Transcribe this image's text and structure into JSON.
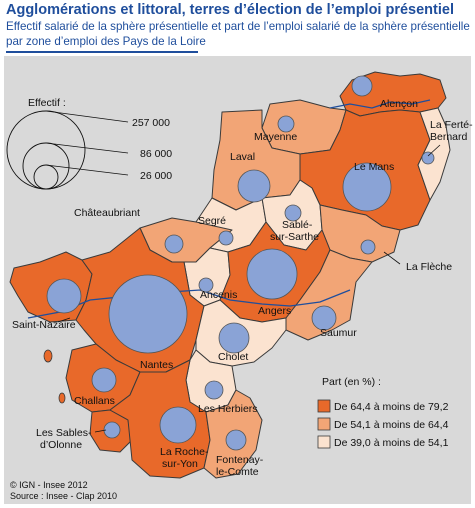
{
  "title": "Agglomérations et littoral, terres d’élection de l’emploi présentiel",
  "subtitle_line1": "Effectif salarié de la sphère présentielle et part de l’emploi salarié de la sphère présentielle",
  "subtitle_line2": "par zone d’emploi des Pays de la Loire",
  "size_legend": {
    "title": "Effectif :",
    "values": [
      "257 000",
      "86 000",
      "26 000"
    ]
  },
  "zones": [
    {
      "name": "Alençon",
      "class": "high"
    },
    {
      "name": "Mayenne",
      "class": "mid"
    },
    {
      "name": "Laval",
      "class": "mid"
    },
    {
      "name": "Le Mans",
      "class": "high"
    },
    {
      "name": "La Ferté-",
      "name2": "Bernard",
      "class": "low"
    },
    {
      "name": "Châteaubriant",
      "class": "mid"
    },
    {
      "name": "Segré",
      "class": "low"
    },
    {
      "name": "Sablé-",
      "name2": "sur-Sarthe",
      "class": "low"
    },
    {
      "name": "La Flèche",
      "class": "mid"
    },
    {
      "name": "Ancenis",
      "class": "low"
    },
    {
      "name": "Angers",
      "class": "high"
    },
    {
      "name": "Saint-Nazaire",
      "class": "high"
    },
    {
      "name": "Nantes",
      "class": "high"
    },
    {
      "name": "Saumur",
      "class": "mid"
    },
    {
      "name": "Cholet",
      "class": "low"
    },
    {
      "name": "Challans",
      "class": "high"
    },
    {
      "name": "Les Herbiers",
      "class": "low"
    },
    {
      "name": "Les Sables-",
      "name2": "d’Olonne",
      "class": "high"
    },
    {
      "name": "La Roche-",
      "name2": "sur-Yon",
      "class": "high"
    },
    {
      "name": "Fontenay-",
      "name2": "le-Comte",
      "class": "mid"
    }
  ],
  "class_legend": {
    "title": "Part (en %) :",
    "items": [
      {
        "label": "De 64,4 à moins de 79,2",
        "color": "#e8692a"
      },
      {
        "label": "De 54,1 à moins de 64,4",
        "color": "#f2a576"
      },
      {
        "label": "De 39,0 à moins de 54,1",
        "color": "#fbe3d0"
      }
    ]
  },
  "colors": {
    "high": "#e8692a",
    "mid": "#f2a576",
    "low": "#fbe3d0",
    "bubble": "#8aa3d6",
    "background": "#d9d9d9",
    "title": "#1f4e9c"
  },
  "credits": {
    "copyright": "© IGN - Insee 2012",
    "source": "Source : Insee - Clap 2010"
  }
}
